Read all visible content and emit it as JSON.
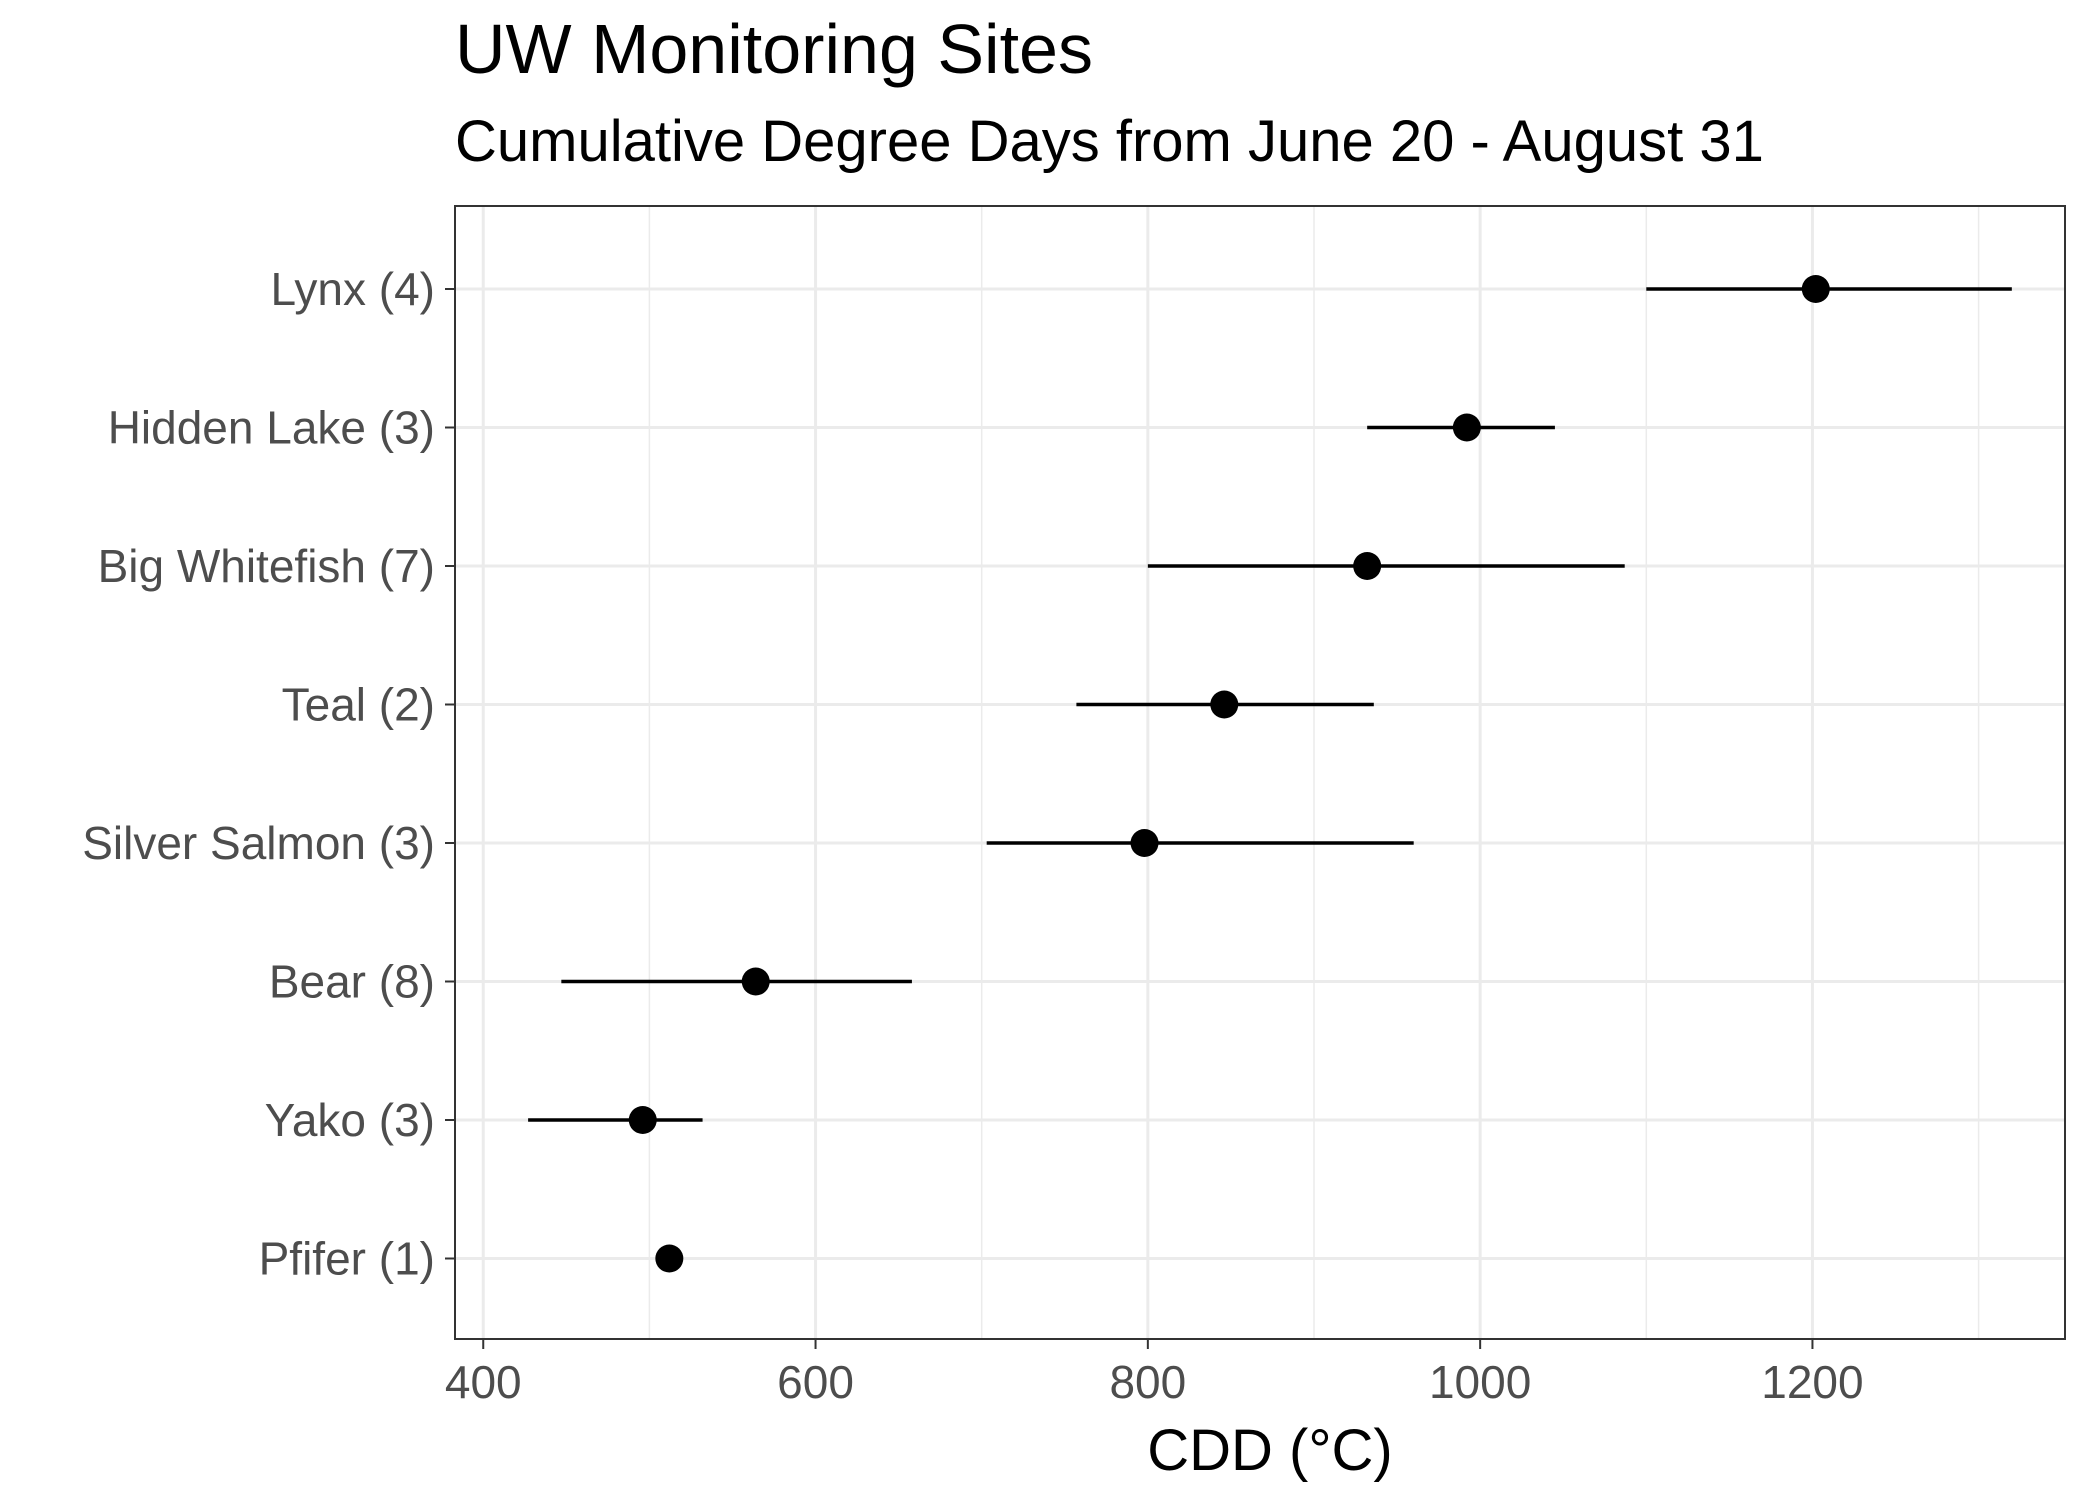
{
  "chart_data": {
    "type": "scatter",
    "title": "UW Monitoring Sites",
    "subtitle": "Cumulative Degree Days from June 20 - August 31",
    "xlabel": "CDD (°C)",
    "ylabel": "",
    "xlim": [
      383,
      1352
    ],
    "x_ticks": [
      400,
      600,
      800,
      1000,
      1200
    ],
    "x_tick_labels": [
      "400",
      "600",
      "800",
      "1000",
      "1200"
    ],
    "grid": true,
    "categories": [
      "Lynx (4)",
      "Hidden Lake (3)",
      "Big Whitefish (7)",
      "Teal (2)",
      "Silver Salmon (3)",
      "Bear (8)",
      "Yako (3)",
      "Pfifer (1)"
    ],
    "points": [
      {
        "label": "Lynx (4)",
        "x": 1202,
        "low": 1100,
        "high": 1320
      },
      {
        "label": "Hidden Lake (3)",
        "x": 992,
        "low": 932,
        "high": 1045
      },
      {
        "label": "Big Whitefish (7)",
        "x": 932,
        "low": 800,
        "high": 1087
      },
      {
        "label": "Teal (2)",
        "x": 846,
        "low": 757,
        "high": 936
      },
      {
        "label": "Silver Salmon (3)",
        "x": 798,
        "low": 703,
        "high": 960
      },
      {
        "label": "Bear (8)",
        "x": 564,
        "low": 447,
        "high": 658
      },
      {
        "label": "Yako (3)",
        "x": 496,
        "low": 427,
        "high": 532
      },
      {
        "label": "Pfifer (1)",
        "x": 512,
        "low": 512,
        "high": 512
      }
    ],
    "point_color": "#000000",
    "grid_color": "#ebebeb",
    "panel_border_color": "#333333",
    "axis_text_color": "#4d4d4d"
  }
}
